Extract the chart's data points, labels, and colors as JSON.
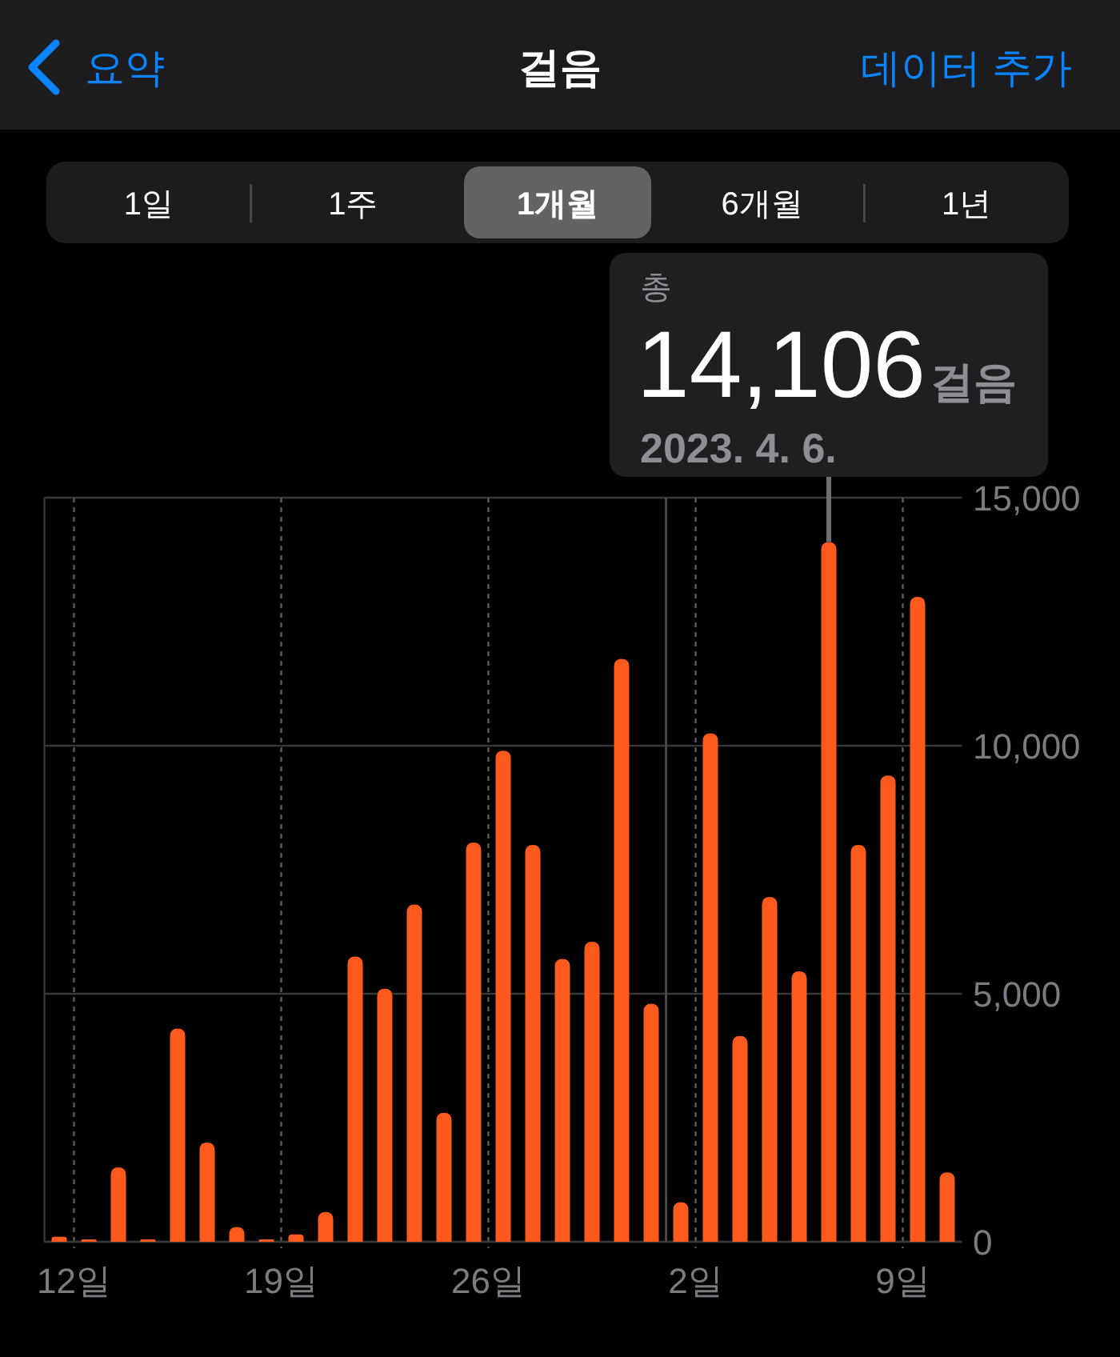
{
  "chart_data": {
    "type": "bar",
    "title": "걸음",
    "x": [
      "2023-03-11T12:00",
      "2023-03-12T12:00",
      "2023-03-13T12:00",
      "2023-03-14T12:00",
      "2023-03-15T12:00",
      "2023-03-16T12:00",
      "2023-03-17T12:00",
      "2023-03-18T12:00",
      "2023-03-19T12:00",
      "2023-03-20T12:00",
      "2023-03-21T12:00",
      "2023-03-22T12:00",
      "2023-03-23T12:00",
      "2023-03-24T12:00",
      "2023-03-25T12:00",
      "2023-03-26T12:00",
      "2023-03-27T12:00",
      "2023-03-28T12:00",
      "2023-03-29T12:00",
      "2023-03-30T12:00",
      "2023-03-31T12:00",
      "2023-04-01T12:00",
      "2023-04-02T12:00",
      "2023-04-03T12:00",
      "2023-04-04T12:00",
      "2023-04-05T12:00",
      "2023-04-06T12:00",
      "2023-04-07T12:00",
      "2023-04-08T12:00",
      "2023-04-09T12:00",
      "2023-04-10T12:00"
    ],
    "values": [
      100,
      50,
      1500,
      50,
      4300,
      2000,
      300,
      50,
      150,
      600,
      5750,
      5100,
      6800,
      2600,
      8050,
      9900,
      8000,
      5700,
      6050,
      11750,
      4800,
      800,
      10250,
      4150,
      6950,
      5450,
      14106,
      8000,
      9400,
      13000,
      1400
    ],
    "color": "#ff5a1e",
    "xlim": [
      "2023-03-11",
      "2023-04-11"
    ],
    "xticks": [
      {
        "value": "2023-03-12",
        "label": "12일"
      },
      {
        "value": "2023-03-19",
        "label": "19일"
      },
      {
        "value": "2023-03-26",
        "label": "26일"
      },
      {
        "value": "2023-04-02",
        "label": "2일"
      },
      {
        "value": "2023-04-09",
        "label": "9일"
      }
    ],
    "ylim": [
      0,
      15000
    ],
    "yticks": [
      0,
      {
        "value": 5000,
        "label": "5,000"
      },
      {
        "value": 10000,
        "label": "10,000"
      },
      {
        "value": 15000,
        "label": "15,000"
      }
    ],
    "grid": true,
    "ref_lines": [
      {
        "axis": "x",
        "value": "2023-04-01",
        "color": "#48484a"
      }
    ],
    "annotations": [
      "요약",
      "데이터 추가",
      "1일",
      "1주",
      "1개월",
      "6개월",
      "1년",
      "총",
      {
        "text": "14,106",
        "x": "2023-04-06T12:00",
        "y": 14106
      },
      "걸음",
      "2023. 4. 6."
    ]
  }
}
